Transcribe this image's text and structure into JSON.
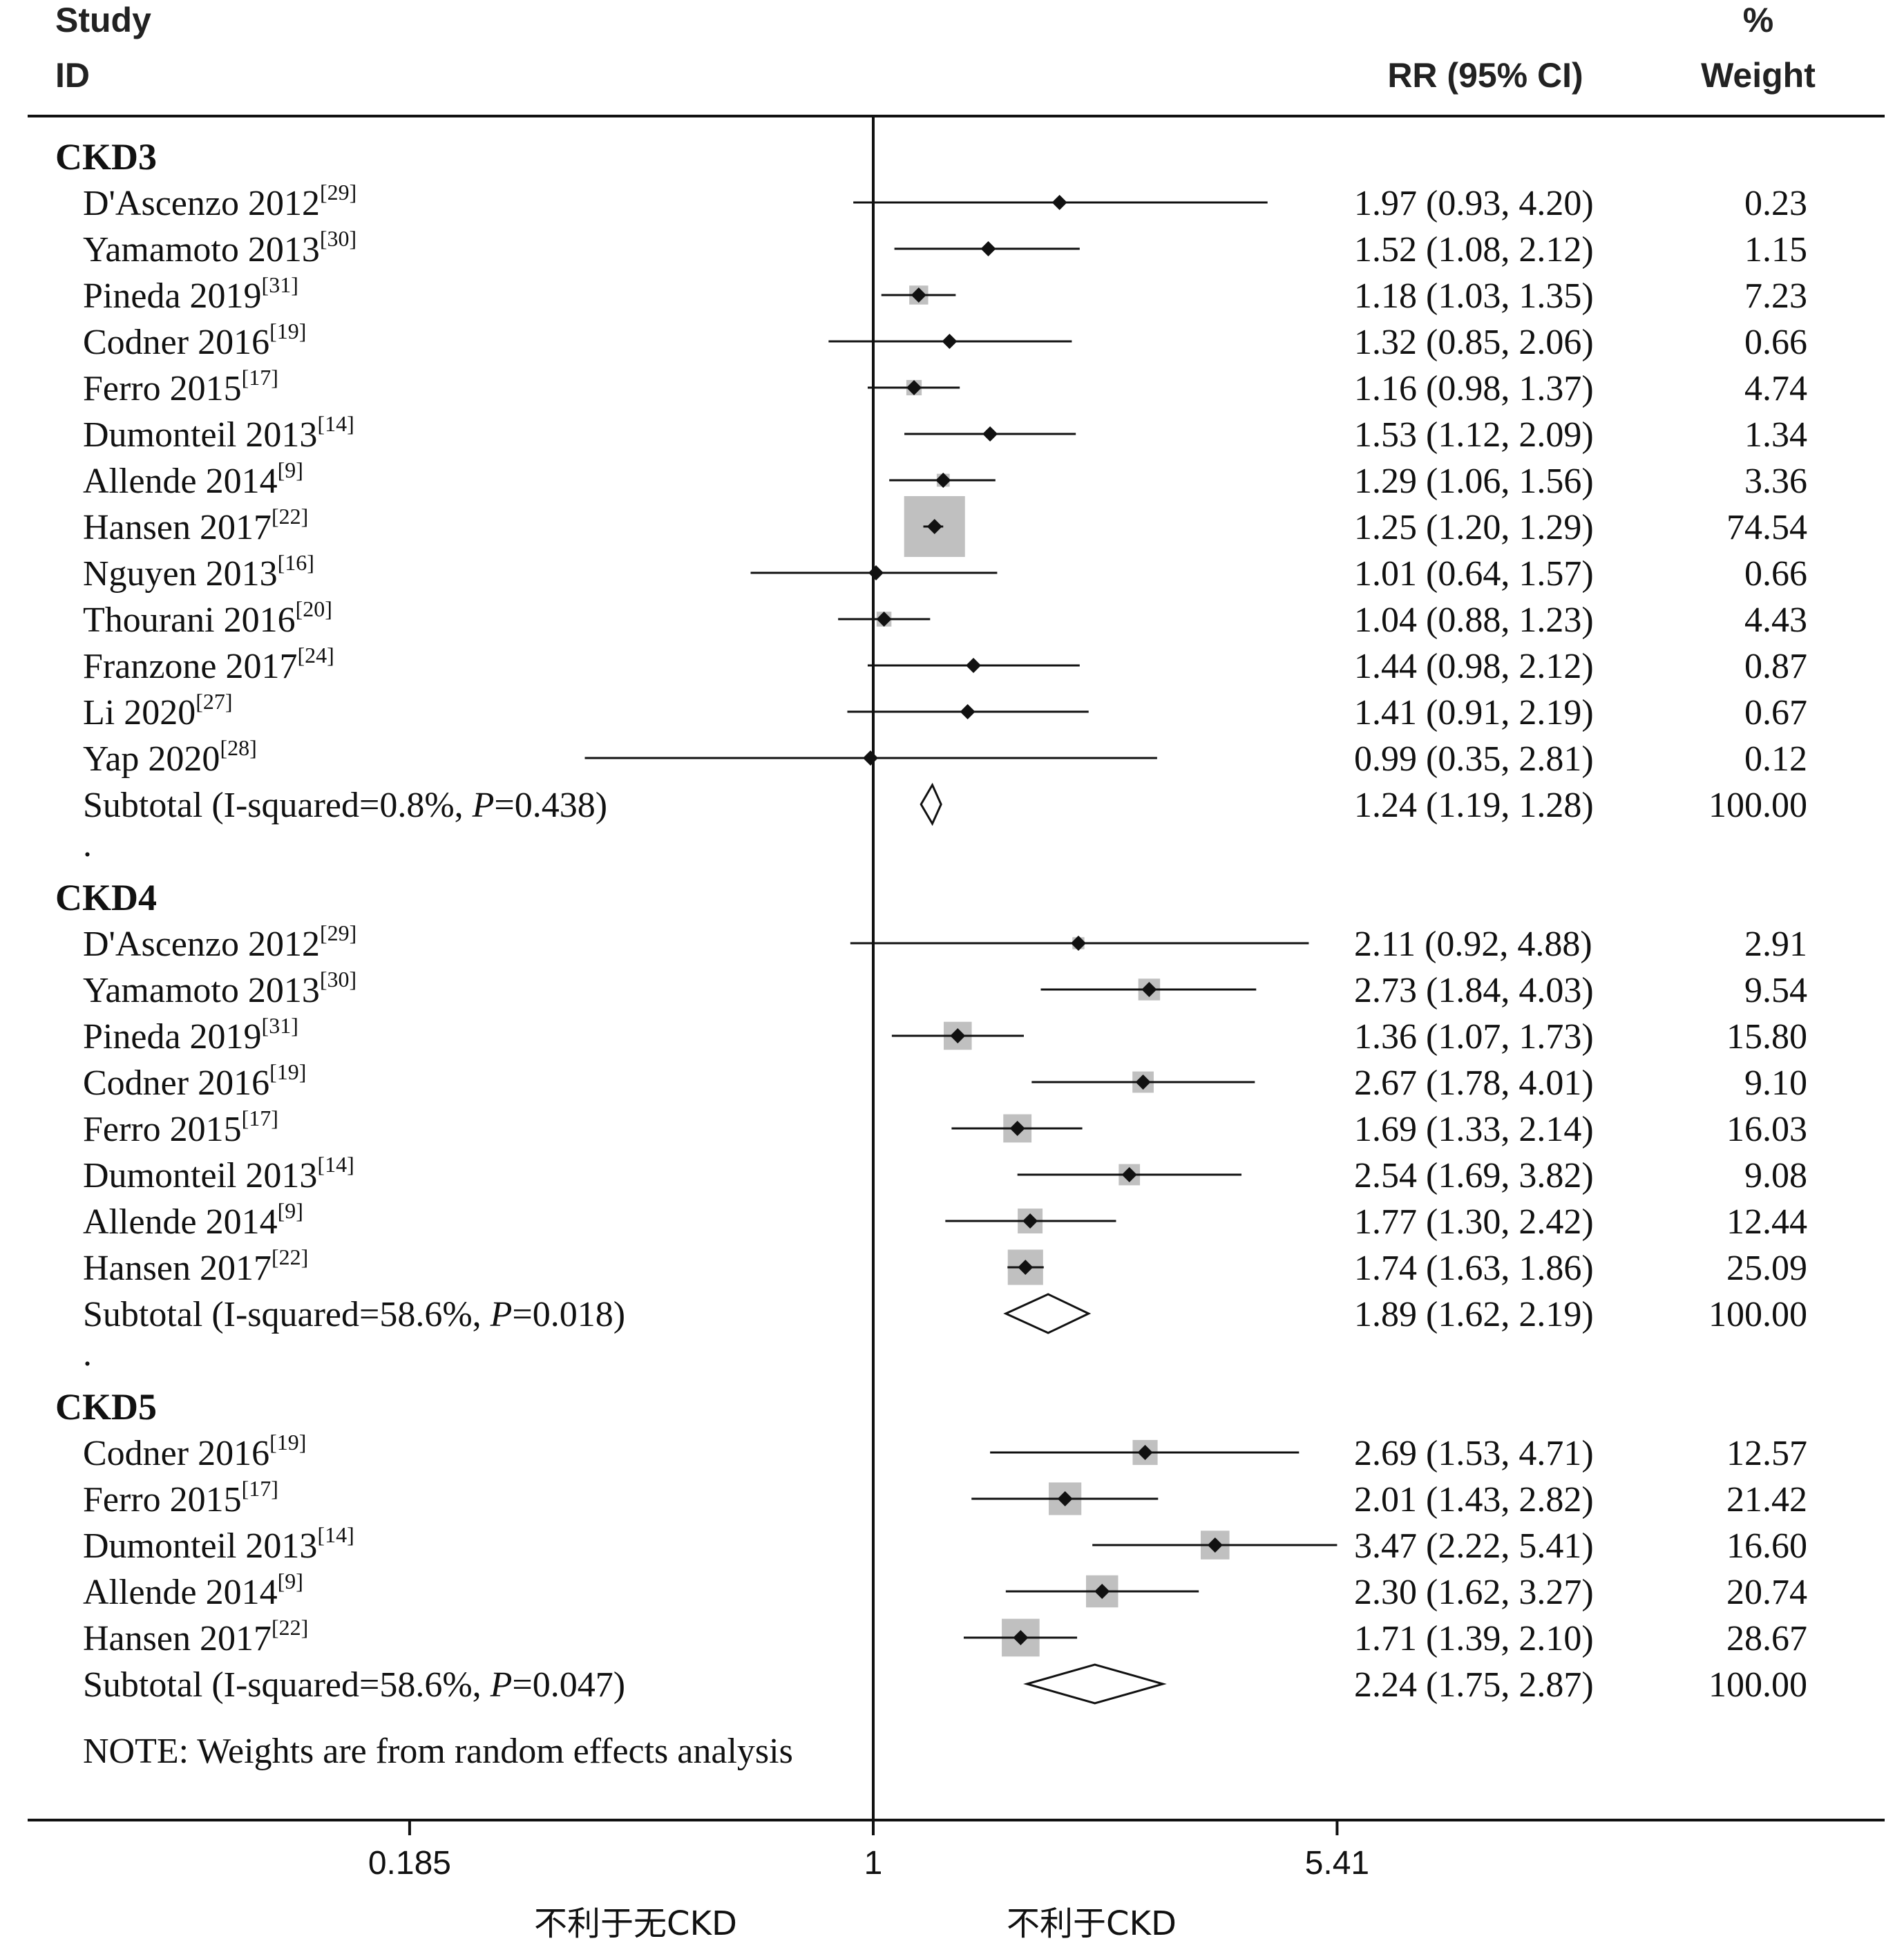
{
  "chart_data": {
    "type": "forest",
    "header": {
      "study_line1": "Study",
      "study_line2": "ID",
      "rr_label": "RR (95% CI)",
      "weight_line1": "%",
      "weight_line2": "Weight"
    },
    "scale": "log",
    "x_ticks": [
      {
        "value": 0.185,
        "label": "0.185"
      },
      {
        "value": 1,
        "label": "1"
      },
      {
        "value": 5.41,
        "label": "5.41"
      }
    ],
    "x_range": [
      0.0526,
      28.5
    ],
    "x_labels": {
      "left": "不利于无CKD",
      "right": "不利于CKD"
    },
    "note": "NOTE: Weights are from random effects analysis",
    "groups": [
      {
        "name": "CKD3",
        "studies": [
          {
            "study": "D'Ascenzo 2012",
            "ref": "[29]",
            "rr": 1.97,
            "lo": 0.93,
            "hi": 4.2,
            "rr_text": "1.97 (0.93, 4.20)",
            "weight": 0.23,
            "weight_text": "0.23"
          },
          {
            "study": "Yamamoto 2013",
            "ref": "[30]",
            "rr": 1.52,
            "lo": 1.08,
            "hi": 2.12,
            "rr_text": "1.52 (1.08, 2.12)",
            "weight": 1.15,
            "weight_text": "1.15"
          },
          {
            "study": "Pineda 2019",
            "ref": "[31]",
            "rr": 1.18,
            "lo": 1.03,
            "hi": 1.35,
            "rr_text": "1.18 (1.03, 1.35)",
            "weight": 7.23,
            "weight_text": "7.23"
          },
          {
            "study": "Codner 2016",
            "ref": "[19]",
            "rr": 1.32,
            "lo": 0.85,
            "hi": 2.06,
            "rr_text": "1.32 (0.85, 2.06)",
            "weight": 0.66,
            "weight_text": "0.66"
          },
          {
            "study": "Ferro 2015",
            "ref": "[17]",
            "rr": 1.16,
            "lo": 0.98,
            "hi": 1.37,
            "rr_text": "1.16 (0.98, 1.37)",
            "weight": 4.74,
            "weight_text": "4.74"
          },
          {
            "study": "Dumonteil 2013",
            "ref": "[14]",
            "rr": 1.53,
            "lo": 1.12,
            "hi": 2.09,
            "rr_text": "1.53 (1.12, 2.09)",
            "weight": 1.34,
            "weight_text": "1.34"
          },
          {
            "study": "Allende 2014",
            "ref": "[9]",
            "rr": 1.29,
            "lo": 1.06,
            "hi": 1.56,
            "rr_text": "1.29 (1.06, 1.56)",
            "weight": 3.36,
            "weight_text": "3.36"
          },
          {
            "study": "Hansen 2017",
            "ref": "[22]",
            "rr": 1.25,
            "lo": 1.2,
            "hi": 1.29,
            "rr_text": "1.25 (1.20, 1.29)",
            "weight": 74.54,
            "weight_text": "74.54"
          },
          {
            "study": "Nguyen 2013",
            "ref": "[16]",
            "rr": 1.01,
            "lo": 0.64,
            "hi": 1.57,
            "rr_text": "1.01 (0.64, 1.57)",
            "weight": 0.66,
            "weight_text": "0.66"
          },
          {
            "study": "Thourani 2016",
            "ref": "[20]",
            "rr": 1.04,
            "lo": 0.88,
            "hi": 1.23,
            "rr_text": "1.04 (0.88, 1.23)",
            "weight": 4.43,
            "weight_text": "4.43"
          },
          {
            "study": "Franzone 2017",
            "ref": "[24]",
            "rr": 1.44,
            "lo": 0.98,
            "hi": 2.12,
            "rr_text": "1.44 (0.98, 2.12)",
            "weight": 0.87,
            "weight_text": "0.87"
          },
          {
            "study": "Li 2020",
            "ref": "[27]",
            "rr": 1.41,
            "lo": 0.91,
            "hi": 2.19,
            "rr_text": "1.41 (0.91, 2.19)",
            "weight": 0.67,
            "weight_text": "0.67"
          },
          {
            "study": "Yap 2020",
            "ref": "[28]",
            "rr": 0.99,
            "lo": 0.35,
            "hi": 2.81,
            "rr_text": "0.99 (0.35, 2.81)",
            "weight": 0.12,
            "weight_text": "0.12"
          }
        ],
        "subtotal": {
          "label": "Subtotal  (I-squared=0.8%, ",
          "p_label": "P",
          "p_value": "=0.438)",
          "rr": 1.24,
          "lo": 1.19,
          "hi": 1.28,
          "rr_text": "1.24 (1.19, 1.28)",
          "weight_text": "100.00"
        },
        "spacer": "."
      },
      {
        "name": "CKD4",
        "studies": [
          {
            "study": "D'Ascenzo 2012",
            "ref": "[29]",
            "rr": 2.11,
            "lo": 0.92,
            "hi": 4.88,
            "rr_text": "2.11 (0.92, 4.88)",
            "weight": 2.91,
            "weight_text": "2.91"
          },
          {
            "study": "Yamamoto 2013",
            "ref": "[30]",
            "rr": 2.73,
            "lo": 1.84,
            "hi": 4.03,
            "rr_text": "2.73 (1.84, 4.03)",
            "weight": 9.54,
            "weight_text": "9.54"
          },
          {
            "study": "Pineda 2019",
            "ref": "[31]",
            "rr": 1.36,
            "lo": 1.07,
            "hi": 1.73,
            "rr_text": "1.36 (1.07, 1.73)",
            "weight": 15.8,
            "weight_text": "15.80"
          },
          {
            "study": "Codner 2016",
            "ref": "[19]",
            "rr": 2.67,
            "lo": 1.78,
            "hi": 4.01,
            "rr_text": "2.67 (1.78, 4.01)",
            "weight": 9.1,
            "weight_text": "9.10"
          },
          {
            "study": "Ferro 2015",
            "ref": "[17]",
            "rr": 1.69,
            "lo": 1.33,
            "hi": 2.14,
            "rr_text": "1.69 (1.33, 2.14)",
            "weight": 16.03,
            "weight_text": "16.03"
          },
          {
            "study": "Dumonteil 2013",
            "ref": "[14]",
            "rr": 2.54,
            "lo": 1.69,
            "hi": 3.82,
            "rr_text": "2.54 (1.69, 3.82)",
            "weight": 9.08,
            "weight_text": "9.08"
          },
          {
            "study": "Allende 2014",
            "ref": "[9]",
            "rr": 1.77,
            "lo": 1.3,
            "hi": 2.42,
            "rr_text": "1.77 (1.30, 2.42)",
            "weight": 12.44,
            "weight_text": "12.44"
          },
          {
            "study": "Hansen 2017",
            "ref": "[22]",
            "rr": 1.74,
            "lo": 1.63,
            "hi": 1.86,
            "rr_text": "1.74 (1.63, 1.86)",
            "weight": 25.09,
            "weight_text": "25.09"
          }
        ],
        "subtotal": {
          "label": "Subtotal  (I-squared=58.6%, ",
          "p_label": "P",
          "p_value": "=0.018)",
          "rr": 1.89,
          "lo": 1.62,
          "hi": 2.19,
          "rr_text": "1.89 (1.62, 2.19)",
          "weight_text": "100.00"
        },
        "spacer": "."
      },
      {
        "name": "CKD5",
        "studies": [
          {
            "study": "Codner 2016",
            "ref": "[19]",
            "rr": 2.69,
            "lo": 1.53,
            "hi": 4.71,
            "rr_text": "2.69 (1.53, 4.71)",
            "weight": 12.57,
            "weight_text": "12.57"
          },
          {
            "study": "Ferro 2015",
            "ref": "[17]",
            "rr": 2.01,
            "lo": 1.43,
            "hi": 2.82,
            "rr_text": "2.01 (1.43, 2.82)",
            "weight": 21.42,
            "weight_text": "21.42"
          },
          {
            "study": "Dumonteil 2013",
            "ref": "[14]",
            "rr": 3.47,
            "lo": 2.22,
            "hi": 5.41,
            "rr_text": "3.47 (2.22, 5.41)",
            "weight": 16.6,
            "weight_text": "16.60"
          },
          {
            "study": "Allende 2014",
            "ref": "[9]",
            "rr": 2.3,
            "lo": 1.62,
            "hi": 3.27,
            "rr_text": "2.30 (1.62, 3.27)",
            "weight": 20.74,
            "weight_text": "20.74"
          },
          {
            "study": "Hansen 2017",
            "ref": "[22]",
            "rr": 1.71,
            "lo": 1.39,
            "hi": 2.1,
            "rr_text": "1.71 (1.39, 2.10)",
            "weight": 28.67,
            "weight_text": "28.67"
          }
        ],
        "subtotal": {
          "label": "Subtotal  (I-squared=58.6%, ",
          "p_label": "P",
          "p_value": "=0.047)",
          "rr": 2.24,
          "lo": 1.75,
          "hi": 2.87,
          "rr_text": "2.24 (1.75, 2.87)",
          "weight_text": "100.00"
        },
        "spacer": ""
      }
    ],
    "colors": {
      "weight_box": "#c0c0c0",
      "marker": "#111111",
      "line": "#111111"
    }
  }
}
